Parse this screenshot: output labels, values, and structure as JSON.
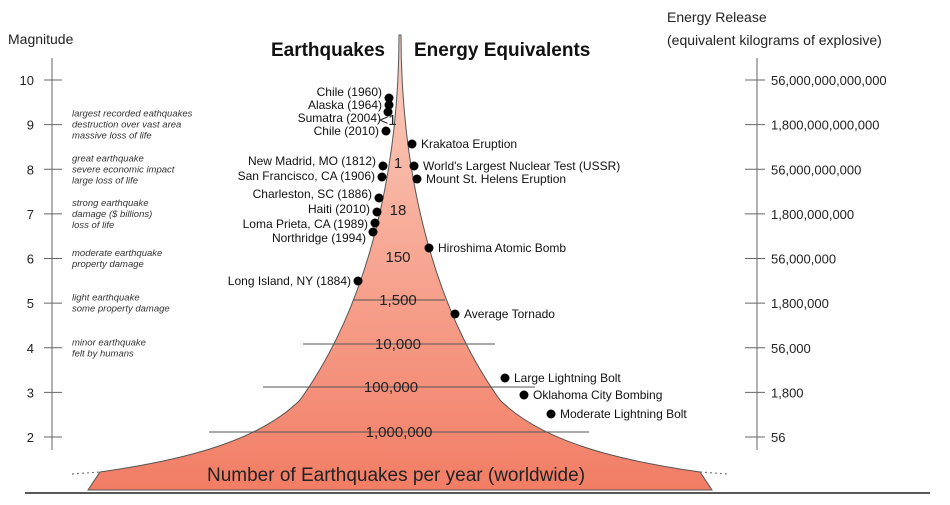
{
  "left_axis": {
    "label": "Magnitude",
    "ticks": [
      {
        "value": "10",
        "desc": []
      },
      {
        "value": "9",
        "desc": [
          "largest recorded eathquakes",
          "destruction over vast area",
          "massive loss of life"
        ]
      },
      {
        "value": "8",
        "desc": [
          "great earthquake",
          "severe economic impact",
          "large loss of life"
        ]
      },
      {
        "value": "7",
        "desc": [
          "strong earthquake",
          "damage ($ billions)",
          "loss of life"
        ]
      },
      {
        "value": "6",
        "desc": [
          "moderate earthquake",
          "property damage"
        ]
      },
      {
        "value": "5",
        "desc": [
          "light earthquake",
          "some property damage"
        ]
      },
      {
        "value": "4",
        "desc": [
          "minor earthquake",
          "felt by humans"
        ]
      },
      {
        "value": "3",
        "desc": []
      },
      {
        "value": "2",
        "desc": []
      }
    ]
  },
  "right_axis": {
    "label_line1": "Energy Release",
    "label_line2": "(equivalent kilograms of explosive)",
    "ticks": [
      "56,000,000,000,000",
      "1,800,000,000,000",
      "56,000,000,000",
      "1,800,000,000",
      "56,000,000",
      "1,800,000",
      "56,000",
      "1,800",
      "56"
    ]
  },
  "titles": {
    "left": "Earthquakes",
    "right": "Energy Equivalents",
    "bottom": "Number of Earthquakes per year (worldwide)"
  },
  "counts": [
    "<1",
    "1",
    "18",
    "150",
    "1,500",
    "10,000",
    "100,000",
    "1,000,000"
  ],
  "earthquakes": [
    {
      "label": "Chile (1960)",
      "magnitude": 9.5
    },
    {
      "label": "Alaska (1964)",
      "magnitude": 9.2
    },
    {
      "label": "Sumatra (2004)",
      "magnitude": 9.1
    },
    {
      "label": "Chile (2010)",
      "magnitude": 8.8
    },
    {
      "label": "New Madrid, MO (1812)",
      "magnitude": 8.0
    },
    {
      "label": "San Francisco, CA (1906)",
      "magnitude": 7.8
    },
    {
      "label": "Charleston, SC (1886)",
      "magnitude": 7.3
    },
    {
      "label": "Haiti (2010)",
      "magnitude": 7.0
    },
    {
      "label": "Loma Prieta, CA (1989)",
      "magnitude": 6.9
    },
    {
      "label": "Northridge (1994)",
      "magnitude": 6.7
    },
    {
      "label": "Long Island, NY (1884)",
      "magnitude": 5.5
    }
  ],
  "energy_equivalents": [
    {
      "label": "Krakatoa Eruption",
      "magnitude": 8.5
    },
    {
      "label": "World's Largest Nuclear Test (USSR)",
      "magnitude": 8.0
    },
    {
      "label": "Mount St. Helens Eruption",
      "magnitude": 7.7
    },
    {
      "label": "Hiroshima Atomic Bomb",
      "magnitude": 6.3
    },
    {
      "label": "Average Tornado",
      "magnitude": 4.7
    },
    {
      "label": "Large Lightning Bolt",
      "magnitude": 3.1
    },
    {
      "label": "Oklahoma City Bombing",
      "magnitude": 2.9
    },
    {
      "label": "Moderate Lightning Bolt",
      "magnitude": 2.5
    }
  ],
  "colors": {
    "funnel_top": "#fbcfc0",
    "funnel_bottom": "#f27d65",
    "funnel_edge": "#555555",
    "point": "#000000",
    "axis": "#666666"
  }
}
